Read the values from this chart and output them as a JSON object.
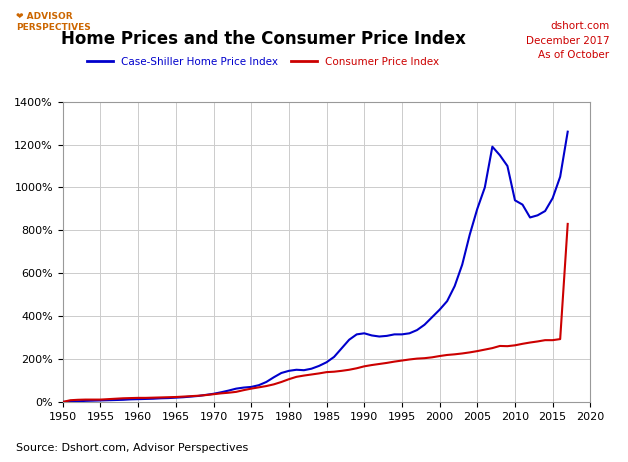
{
  "title": "Home Prices and the Consumer Price Index",
  "subtitle_right": "dshort.com\nDecember 2017\nAs of October",
  "source_text": "Source: Dshort.com, Advisor Perspectives",
  "legend_label_hpi": "Case-Shiller Home Price Index",
  "legend_label_cpi": "Consumer Price Index",
  "hpi_color": "#0000CC",
  "cpi_color": "#CC0000",
  "background_color": "#FFFFFF",
  "plot_bg_color": "#FFFFFF",
  "grid_color": "#CCCCCC",
  "xlim": [
    1950,
    2020
  ],
  "ylim": [
    0,
    1400
  ],
  "yticks": [
    0,
    200,
    400,
    600,
    800,
    1000,
    1200,
    1400
  ],
  "xticks": [
    1950,
    1955,
    1960,
    1965,
    1970,
    1975,
    1980,
    1985,
    1990,
    1995,
    2000,
    2005,
    2010,
    2015,
    2020
  ],
  "hpi_years": [
    1950,
    1951,
    1952,
    1953,
    1954,
    1955,
    1956,
    1957,
    1958,
    1959,
    1960,
    1961,
    1962,
    1963,
    1964,
    1965,
    1966,
    1967,
    1968,
    1969,
    1970,
    1971,
    1972,
    1973,
    1974,
    1975,
    1976,
    1977,
    1978,
    1979,
    1980,
    1981,
    1982,
    1983,
    1984,
    1985,
    1986,
    1987,
    1988,
    1989,
    1990,
    1991,
    1992,
    1993,
    1994,
    1995,
    1996,
    1997,
    1998,
    1999,
    2000,
    2001,
    2002,
    2003,
    2004,
    2005,
    2006,
    2007,
    2008,
    2009,
    2010,
    2011,
    2012,
    2013,
    2014,
    2015,
    2016,
    2017
  ],
  "hpi_values": [
    0,
    2,
    3,
    5,
    6,
    7,
    8,
    9,
    10,
    12,
    13,
    14,
    15,
    17,
    18,
    20,
    22,
    25,
    28,
    33,
    38,
    45,
    53,
    62,
    67,
    70,
    78,
    93,
    115,
    135,
    145,
    150,
    148,
    155,
    168,
    185,
    210,
    250,
    290,
    315,
    320,
    310,
    305,
    308,
    315,
    315,
    320,
    335,
    360,
    395,
    430,
    470,
    540,
    640,
    780,
    900,
    1000,
    1190,
    1150,
    1100,
    940,
    920,
    860,
    870,
    890,
    950,
    1050,
    1260
  ],
  "cpi_years": [
    1950,
    1951,
    1952,
    1953,
    1954,
    1955,
    1956,
    1957,
    1958,
    1959,
    1960,
    1961,
    1962,
    1963,
    1964,
    1965,
    1966,
    1967,
    1968,
    1969,
    1970,
    1971,
    1972,
    1973,
    1974,
    1975,
    1976,
    1977,
    1978,
    1979,
    1980,
    1981,
    1982,
    1983,
    1984,
    1985,
    1986,
    1987,
    1988,
    1989,
    1990,
    1991,
    1992,
    1993,
    1994,
    1995,
    1996,
    1997,
    1998,
    1999,
    2000,
    2001,
    2002,
    2003,
    2004,
    2005,
    2006,
    2007,
    2008,
    2009,
    2010,
    2011,
    2012,
    2013,
    2014,
    2015,
    2016,
    2017
  ],
  "cpi_values": [
    0,
    8,
    10,
    11,
    11,
    11,
    13,
    15,
    17,
    18,
    19,
    19,
    20,
    21,
    22,
    23,
    25,
    27,
    29,
    32,
    36,
    40,
    43,
    47,
    55,
    62,
    68,
    74,
    82,
    93,
    106,
    117,
    123,
    128,
    133,
    139,
    141,
    145,
    150,
    157,
    166,
    172,
    177,
    182,
    188,
    193,
    198,
    202,
    204,
    208,
    214,
    219,
    222,
    226,
    231,
    237,
    244,
    251,
    261,
    260,
    264,
    271,
    277,
    282,
    288,
    288,
    293,
    830
  ],
  "line_width": 1.5,
  "logo_text": "❤ ADVISOR\nPERSPECTIVES",
  "logo_color": "#CC6600"
}
